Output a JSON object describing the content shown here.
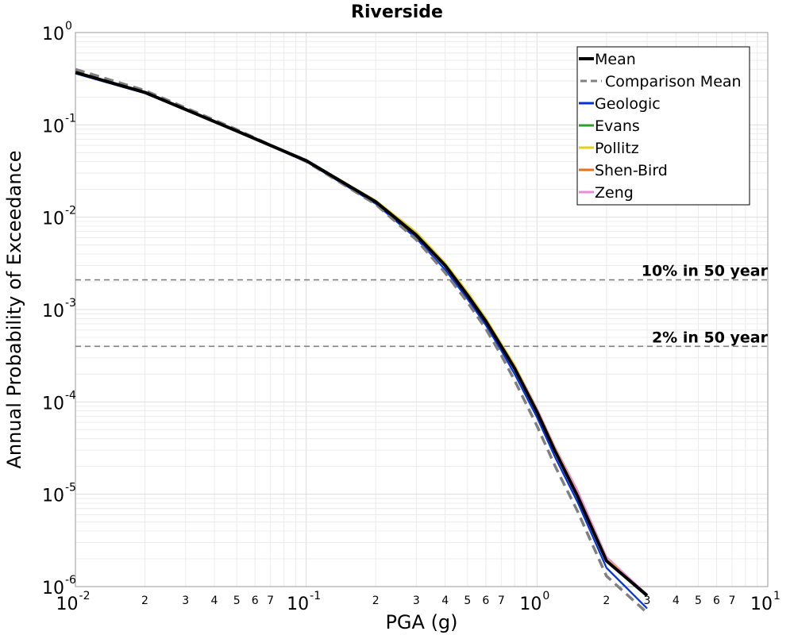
{
  "chart_data": {
    "type": "line",
    "title": "Riverside",
    "xlabel": "PGA (g)",
    "ylabel": "Annual Probability of Exceedance",
    "xscale": "log",
    "yscale": "log",
    "xlim": [
      0.01,
      10
    ],
    "ylim": [
      1e-06,
      1
    ],
    "grid": true,
    "legend_position": "top-right",
    "x_major_ticks": [
      {
        "value": 0.01,
        "base": "10",
        "exp": "-2"
      },
      {
        "value": 0.1,
        "base": "10",
        "exp": "-1"
      },
      {
        "value": 1,
        "base": "10",
        "exp": "0"
      },
      {
        "value": 10,
        "base": "10",
        "exp": "1"
      }
    ],
    "y_major_ticks": [
      {
        "value": 1,
        "base": "10",
        "exp": "0"
      },
      {
        "value": 0.1,
        "base": "10",
        "exp": "-1"
      },
      {
        "value": 0.01,
        "base": "10",
        "exp": "-2"
      },
      {
        "value": 0.001,
        "base": "10",
        "exp": "-3"
      },
      {
        "value": 0.0001,
        "base": "10",
        "exp": "-4"
      },
      {
        "value": 1e-05,
        "base": "10",
        "exp": "-5"
      },
      {
        "value": 1e-06,
        "base": "10",
        "exp": "-6"
      }
    ],
    "x_minor_ticks": [
      {
        "value": 0.02,
        "label": "2"
      },
      {
        "value": 0.03,
        "label": "3"
      },
      {
        "value": 0.04,
        "label": "4"
      },
      {
        "value": 0.05,
        "label": "5"
      },
      {
        "value": 0.06,
        "label": "6"
      },
      {
        "value": 0.07,
        "label": "7"
      },
      {
        "value": 0.2,
        "label": "2"
      },
      {
        "value": 0.3,
        "label": "3"
      },
      {
        "value": 0.4,
        "label": "4"
      },
      {
        "value": 0.5,
        "label": "5"
      },
      {
        "value": 0.6,
        "label": "6"
      },
      {
        "value": 0.7,
        "label": "7"
      },
      {
        "value": 2,
        "label": "2"
      },
      {
        "value": 3,
        "label": "3"
      },
      {
        "value": 4,
        "label": "4"
      },
      {
        "value": 5,
        "label": "5"
      },
      {
        "value": 6,
        "label": "6"
      },
      {
        "value": 7,
        "label": "7"
      }
    ],
    "reference_lines": [
      {
        "y": 0.0021,
        "label": "10% in 50 year",
        "color": "#808080"
      },
      {
        "y": 0.0004,
        "label": "2% in 50 year",
        "color": "#808080"
      }
    ],
    "x": [
      0.01,
      0.02,
      0.05,
      0.1,
      0.2,
      0.3,
      0.4,
      0.5,
      0.6,
      0.7,
      0.8,
      1.0,
      1.2,
      1.5,
      2.0,
      3.0
    ],
    "series": [
      {
        "name": "Geologic",
        "color": "#0033dd",
        "style": "solid",
        "values": [
          0.36,
          0.22,
          0.085,
          0.04,
          0.014,
          0.0059,
          0.0027,
          0.0013,
          0.00068,
          0.00036,
          0.0002,
          6.8e-05,
          2.5e-05,
          8.2e-06,
          1.6e-06,
          5.8e-07
        ]
      },
      {
        "name": "Evans",
        "color": "#2ca02c",
        "style": "solid",
        "values": [
          0.37,
          0.226,
          0.087,
          0.041,
          0.0148,
          0.0065,
          0.003,
          0.00145,
          0.00076,
          0.0004,
          0.00023,
          7.8e-05,
          2.9e-05,
          9.5e-06,
          1.9e-06,
          7.8e-07
        ]
      },
      {
        "name": "Pollitz",
        "color": "#e6cf17",
        "style": "solid",
        "values": [
          0.37,
          0.226,
          0.087,
          0.0415,
          0.0152,
          0.0069,
          0.0032,
          0.00155,
          0.00081,
          0.00043,
          0.00025,
          8.2e-05,
          3.1e-05,
          1e-05,
          2e-06,
          8e-07
        ]
      },
      {
        "name": "Shen-Bird",
        "color": "#e8711a",
        "style": "solid",
        "values": [
          0.37,
          0.225,
          0.086,
          0.041,
          0.0148,
          0.0065,
          0.003,
          0.00145,
          0.00077,
          0.00041,
          0.00024,
          8e-05,
          3e-05,
          9.8e-06,
          1.9e-06,
          8e-07
        ]
      },
      {
        "name": "Zeng",
        "color": "#ee88d9",
        "style": "solid",
        "values": [
          0.37,
          0.226,
          0.087,
          0.041,
          0.0149,
          0.0066,
          0.0031,
          0.0015,
          0.0008,
          0.00042,
          0.00025,
          8.5e-05,
          3.2e-05,
          1.1e-05,
          2.1e-06,
          8.2e-07
        ]
      },
      {
        "name": "Mean",
        "color": "#000000",
        "style": "solid",
        "values": [
          0.37,
          0.225,
          0.086,
          0.041,
          0.0147,
          0.0064,
          0.003,
          0.00143,
          0.00075,
          0.0004,
          0.00023,
          7.8e-05,
          2.9e-05,
          9.5e-06,
          1.9e-06,
          8e-07
        ]
      },
      {
        "name": "Comparison Mean",
        "color": "#808080",
        "style": "dashed",
        "values": [
          0.4,
          0.236,
          0.089,
          0.04,
          0.0138,
          0.0057,
          0.0025,
          0.0012,
          0.00062,
          0.00032,
          0.00017,
          5.5e-05,
          2e-05,
          6.5e-06,
          1.3e-06,
          5.2e-07
        ]
      }
    ],
    "legend_order": [
      "Mean",
      "Comparison Mean",
      "Geologic",
      "Evans",
      "Pollitz",
      "Shen-Bird",
      "Zeng"
    ]
  }
}
